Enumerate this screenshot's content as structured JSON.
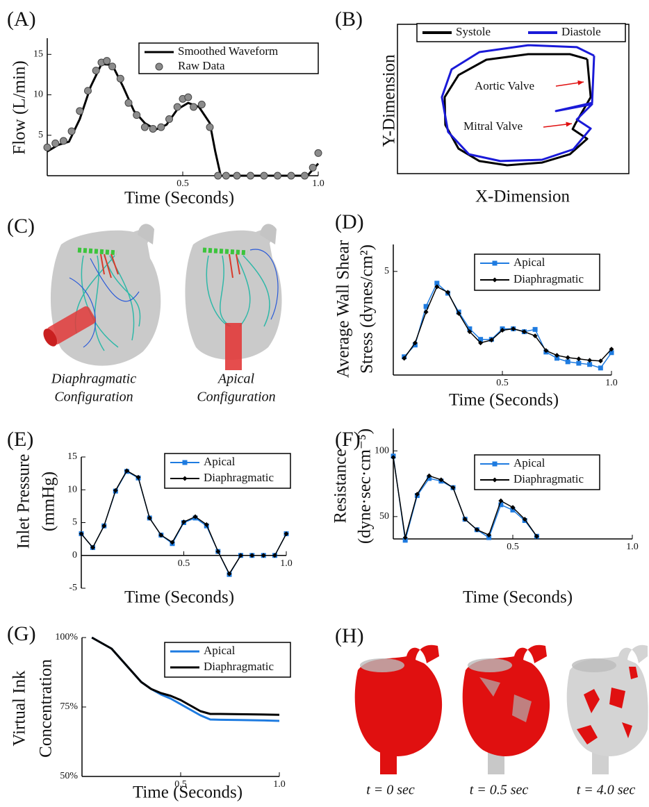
{
  "chart_data": [
    {
      "type": "line",
      "panel_label": "(A)",
      "xlabel": "Time (Seconds)",
      "ylabel": "Flow (L/min)",
      "xlim": [
        0,
        1
      ],
      "ylim": [
        0,
        17
      ],
      "xticks": [
        0.5,
        {
          "value": 1,
          "label": "1.0"
        }
      ],
      "yticks": [
        5,
        10,
        15
      ],
      "legend": "upper right",
      "series": [
        {
          "name": "Smoothed Waveform",
          "color": "#000000",
          "style": "line",
          "x": [
            0,
            0.04,
            0.08,
            0.12,
            0.16,
            0.2,
            0.24,
            0.28,
            0.32,
            0.36,
            0.4,
            0.44,
            0.48,
            0.52,
            0.56,
            0.6,
            0.62,
            0.64,
            0.7,
            0.8,
            0.9,
            0.96,
            1.0
          ],
          "values": [
            3,
            3.8,
            4.2,
            7,
            11,
            13.8,
            13.7,
            11,
            8,
            6.5,
            5.7,
            6.3,
            8.2,
            9,
            8.5,
            6.5,
            3,
            0,
            0,
            0,
            0,
            0,
            1.5
          ]
        },
        {
          "name": "Raw Data",
          "color": "#8c8c8c",
          "style": "points",
          "x": [
            0,
            0.03,
            0.06,
            0.09,
            0.12,
            0.15,
            0.18,
            0.2,
            0.22,
            0.24,
            0.27,
            0.3,
            0.33,
            0.36,
            0.39,
            0.42,
            0.45,
            0.48,
            0.5,
            0.52,
            0.54,
            0.57,
            0.6,
            0.63,
            0.66,
            0.7,
            0.75,
            0.8,
            0.85,
            0.9,
            0.95,
            0.98,
            1.0
          ],
          "values": [
            3.5,
            4,
            4.3,
            5.5,
            8,
            10.5,
            13,
            14,
            14.2,
            13.5,
            12,
            9,
            7.5,
            6,
            5.8,
            6,
            7,
            8.5,
            9.5,
            9.7,
            8.5,
            8.8,
            6,
            0,
            0,
            0,
            0,
            0,
            0,
            0,
            0,
            1,
            2.8
          ]
        }
      ]
    },
    {
      "type": "line",
      "panel_label": "(B)",
      "xlabel": "X-Dimension",
      "ylabel": "Y-Dimension",
      "xlim": [
        0,
        100
      ],
      "ylim": [
        0,
        100
      ],
      "legend": "top",
      "annotations": [
        "Aortic Valve",
        "Mitral Valve"
      ],
      "series": [
        {
          "name": "Systole",
          "color": "#000000",
          "x": [
            82,
            83.5,
            76.9,
            75.7,
            82,
            74.5,
            62.5,
            47.4,
            35.4,
            26.4,
            20.7,
            20.4,
            26.4,
            38.4,
            56.5,
            74.5,
            82
          ],
          "values": [
            76.7,
            51.2,
            33.5,
            29.8,
            23.3,
            13,
            7.4,
            5.6,
            8.4,
            16.7,
            32.6,
            51.2,
            66,
            76.3,
            80,
            80,
            76.7
          ]
        },
        {
          "name": "Diastole",
          "color": "#1a1ad8",
          "x": [
            85,
            84.1,
            68.5,
            84.1,
            77.5,
            83.5,
            76,
            62.5,
            44.4,
            30.9,
            21.9,
            19.2,
            23.4,
            35.4,
            56.5,
            77.5,
            85
          ],
          "values": [
            79,
            47.4,
            41.9,
            46.5,
            36.3,
            30.2,
            16.3,
            9.3,
            8.4,
            13,
            27.9,
            51.2,
            69.8,
            81.4,
            86,
            84.7,
            79
          ]
        }
      ]
    },
    {
      "type": "line",
      "panel_label": "(D)",
      "xlabel": "Time (Seconds)",
      "ylabel": [
        "Average Wall Shear",
        "Stress (dynes/cm²)"
      ],
      "xlim": [
        0,
        1
      ],
      "ylim": [
        0,
        6.3
      ],
      "xticks": [
        0.5,
        {
          "value": 1,
          "label": "1.0"
        }
      ],
      "yticks": [
        5
      ],
      "legend": "upper right",
      "x": [
        0.05,
        0.1,
        0.15,
        0.2,
        0.25,
        0.3,
        0.35,
        0.4,
        0.45,
        0.5,
        0.55,
        0.6,
        0.65,
        0.7,
        0.75,
        0.8,
        0.85,
        0.9,
        0.95,
        1.0
      ],
      "series": [
        {
          "name": "Apical",
          "color": "#1e7be0",
          "marker": "square",
          "values": [
            0.88,
            1.45,
            3.31,
            4.43,
            3.95,
            3.04,
            2.23,
            1.72,
            1.72,
            2.23,
            2.23,
            2.09,
            2.2,
            1.11,
            0.81,
            0.64,
            0.57,
            0.51,
            0.34,
            1.08
          ]
        },
        {
          "name": "Diaphragmatic",
          "color": "#000000",
          "marker": "diamond",
          "values": [
            0.81,
            1.55,
            3.04,
            4.26,
            3.99,
            2.97,
            2.09,
            1.55,
            1.69,
            2.16,
            2.23,
            2.09,
            1.89,
            1.18,
            0.95,
            0.84,
            0.78,
            0.71,
            0.68,
            1.25
          ]
        }
      ]
    },
    {
      "type": "line",
      "panel_label": "(E)",
      "xlabel": "Time (Seconds)",
      "ylabel": [
        "Inlet Pressure",
        "(mmHg)"
      ],
      "xlim": [
        0,
        1
      ],
      "ylim": [
        -5,
        15
      ],
      "xticks": [
        0.5,
        {
          "value": 1,
          "label": "1.0"
        }
      ],
      "yticks": [
        -5,
        0,
        5,
        10,
        15
      ],
      "legend": "upper right",
      "x": [
        0,
        0.056,
        0.111,
        0.167,
        0.222,
        0.278,
        0.333,
        0.389,
        0.444,
        0.5,
        0.556,
        0.611,
        0.667,
        0.722,
        0.778,
        0.833,
        0.889,
        0.944,
        1.0
      ],
      "series": [
        {
          "name": "Apical",
          "color": "#1e7be0",
          "marker": "square",
          "values": [
            3.3,
            1.2,
            4.5,
            9.8,
            12.8,
            11.8,
            5.7,
            3.1,
            1.8,
            5.0,
            5.7,
            4.5,
            0.6,
            -2.9,
            0,
            0,
            0,
            0,
            3.3
          ]
        },
        {
          "name": "Diaphragmatic",
          "color": "#000000",
          "marker": "diamond",
          "values": [
            3.3,
            1.2,
            4.5,
            9.9,
            12.9,
            11.9,
            5.7,
            3.1,
            2.0,
            5.1,
            5.9,
            4.7,
            0.6,
            -2.8,
            0,
            0,
            0,
            0,
            3.3
          ]
        }
      ]
    },
    {
      "type": "line",
      "panel_label": "(F)",
      "xlabel": "Time (Seconds)",
      "ylabel": [
        "Resistance",
        "(dyne·sec·cm⁻⁵)"
      ],
      "xlim": [
        0,
        1
      ],
      "ylim": [
        33,
        117
      ],
      "xticks": [
        0.5,
        {
          "value": 1,
          "label": "1.0"
        }
      ],
      "yticks": [
        50,
        100
      ],
      "legend": "upper right",
      "x": [
        0,
        0.05,
        0.1,
        0.15,
        0.2,
        0.25,
        0.3,
        0.35,
        0.4,
        0.45,
        0.5,
        0.55,
        0.6
      ],
      "series": [
        {
          "name": "Apical",
          "color": "#1e7be0",
          "marker": "square",
          "values": [
            96,
            32,
            66,
            79,
            77,
            72,
            48,
            40,
            34,
            59,
            55,
            47,
            35
          ]
        },
        {
          "name": "Diaphragmatic",
          "color": "#000000",
          "marker": "diamond",
          "values": [
            95,
            34,
            67,
            81,
            78,
            72,
            48,
            40,
            36,
            62,
            57,
            48,
            35
          ]
        }
      ]
    },
    {
      "type": "line",
      "panel_label": "(G)",
      "xlabel": "Time (Seconds)",
      "ylabel": [
        "Virtual Ink",
        "Concentration"
      ],
      "xlim": [
        0,
        1
      ],
      "ylim": [
        50,
        100
      ],
      "xticks": [
        0.5,
        {
          "value": 1,
          "label": "1.0"
        }
      ],
      "yticks": [
        {
          "value": 50,
          "label": "50%"
        },
        {
          "value": 75,
          "label": "75%"
        },
        {
          "value": 100,
          "label": "100%"
        }
      ],
      "legend": "upper right",
      "x": [
        0.05,
        0.1,
        0.15,
        0.2,
        0.25,
        0.3,
        0.35,
        0.4,
        0.45,
        0.5,
        0.55,
        0.6,
        0.65,
        0.7,
        0.8,
        0.9,
        1.0
      ],
      "series": [
        {
          "name": "Apical",
          "color": "#1e7be0",
          "values": [
            100,
            98,
            96,
            92,
            88,
            84,
            81.5,
            79.5,
            78,
            76,
            74,
            72,
            70.5,
            70.4,
            70.3,
            70.2,
            70
          ]
        },
        {
          "name": "Diaphragmatic",
          "color": "#000000",
          "values": [
            100,
            98,
            96,
            92,
            88,
            84,
            81.5,
            80,
            79,
            77.5,
            75.5,
            73.5,
            72.5,
            72.5,
            72.4,
            72.3,
            72.2
          ]
        }
      ]
    }
  ],
  "panel_c": {
    "panel_label": "(C)",
    "captions": [
      [
        "Diaphragmatic",
        "Configuration"
      ],
      [
        "Apical",
        "Configuration"
      ]
    ]
  },
  "panel_h": {
    "panel_label": "(H)",
    "captions": [
      "t = 0 sec",
      "t = 0.5 sec",
      "t = 4.0 sec"
    ]
  }
}
